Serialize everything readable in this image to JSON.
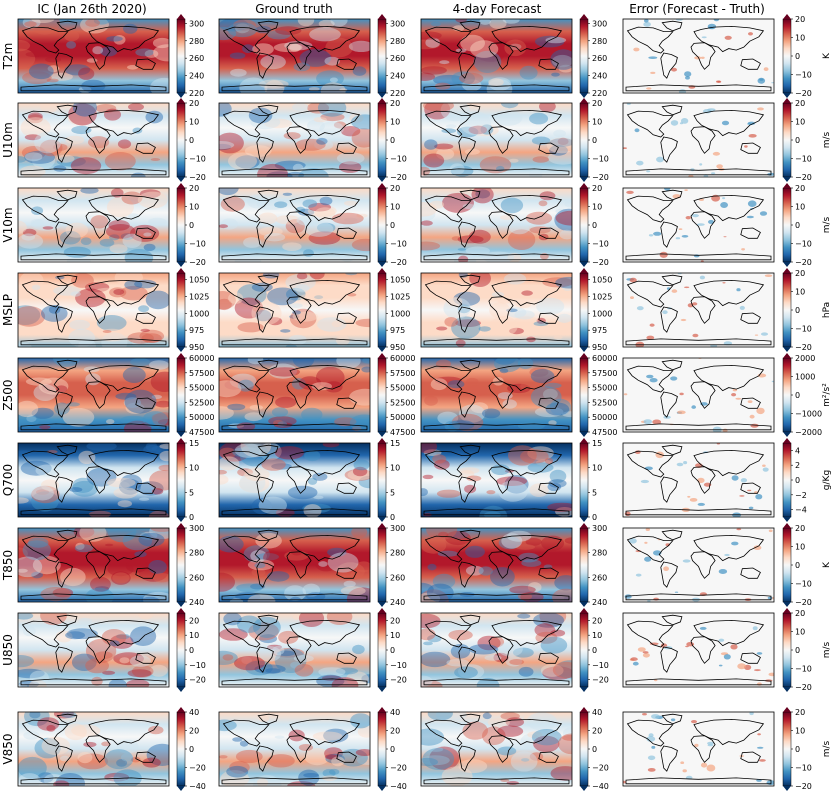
{
  "figure": {
    "column_titles": [
      "IC (Jan 26th 2020)",
      "Ground truth",
      "4-day Forecast",
      "Error (Forecast - Truth)"
    ],
    "colormap": "RdBu_r",
    "colormap_stops": [
      "#053061",
      "#2166ac",
      "#4393c3",
      "#92c5de",
      "#d1e5f0",
      "#f7f7f7",
      "#fddbc7",
      "#f4a582",
      "#d6604d",
      "#b2182b",
      "#67001f"
    ],
    "map_content": "global maps with black coastlines"
  },
  "chart_data": {
    "type": "heatmap",
    "rows": [
      {
        "variable": "T2m",
        "unit": "",
        "field_ticks": [
          "300",
          "280",
          "260",
          "240",
          "220"
        ],
        "field_range": [
          220,
          305
        ],
        "error_unit": "K",
        "error_ticks": [
          "20",
          "10",
          "0",
          "−10",
          "−20"
        ],
        "error_range": [
          -20,
          20
        ]
      },
      {
        "variable": "U10m",
        "unit": "",
        "field_ticks": [
          "20",
          "10",
          "0",
          "−10",
          "−20"
        ],
        "field_range": [
          -20,
          20
        ],
        "error_unit": "m/s",
        "error_ticks": [
          "20",
          "10",
          "0",
          "−10",
          "−20"
        ],
        "error_range": [
          -20,
          20
        ]
      },
      {
        "variable": "V10m",
        "unit": "",
        "field_ticks": [
          "20",
          "10",
          "0",
          "−10",
          "−20"
        ],
        "field_range": [
          -20,
          20
        ],
        "error_unit": "m/s",
        "error_ticks": [
          "20",
          "10",
          "0",
          "−10",
          "−20"
        ],
        "error_range": [
          -20,
          20
        ]
      },
      {
        "variable": "MSLP",
        "unit": "",
        "field_ticks": [
          "1050",
          "1025",
          "1000",
          "975",
          "950"
        ],
        "field_range": [
          950,
          1060
        ],
        "error_unit": "hPa",
        "error_ticks": [
          "20",
          "10",
          "0",
          "−10",
          "−20"
        ],
        "error_range": [
          -20,
          20
        ]
      },
      {
        "variable": "Z500",
        "unit": "",
        "field_ticks": [
          "60000",
          "57500",
          "55000",
          "52500",
          "50000",
          "47500"
        ],
        "field_range": [
          47500,
          60000
        ],
        "error_unit": "m²/s²",
        "error_ticks": [
          "2000",
          "1000",
          "0",
          "−1000",
          "−2000"
        ],
        "error_range": [
          -2000,
          2000
        ]
      },
      {
        "variable": "Q700",
        "unit": "",
        "field_ticks": [
          "15",
          "10",
          "5",
          "0"
        ],
        "field_range": [
          0,
          15
        ],
        "error_unit": "g/Kg",
        "error_ticks": [
          "4",
          "2",
          "0",
          "−2",
          "−4"
        ],
        "error_range": [
          -5,
          5
        ]
      },
      {
        "variable": "T850",
        "unit": "",
        "field_ticks": [
          "300",
          "280",
          "260",
          "240"
        ],
        "field_range": [
          240,
          300
        ],
        "error_unit": "K",
        "error_ticks": [
          "20",
          "10",
          "0",
          "−10",
          "−20"
        ],
        "error_range": [
          -20,
          20
        ]
      },
      {
        "variable": "U850",
        "unit": "",
        "field_ticks": [
          "20",
          "10",
          "0",
          "−10",
          "−20"
        ],
        "field_range": [
          -25,
          25
        ],
        "error_unit": "m/s",
        "error_ticks": [
          "20",
          "10",
          "0",
          "−10",
          "−20"
        ],
        "error_range": [
          -20,
          20
        ]
      },
      {
        "variable": "V850",
        "unit": "",
        "field_ticks": [
          "40",
          "20",
          "0",
          "−20",
          "−40"
        ],
        "field_range": [
          -40,
          40
        ],
        "error_unit": "m/s",
        "error_ticks": [
          "20",
          "10",
          "0",
          "−10",
          "−20"
        ],
        "error_range": [
          -20,
          20
        ]
      }
    ]
  }
}
